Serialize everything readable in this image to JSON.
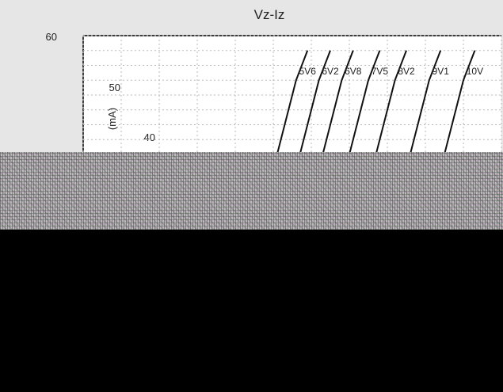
{
  "chart_data": {
    "type": "line",
    "title": "Vz-Iz",
    "xlabel": "",
    "ylabel": "(mA)",
    "ylim": [
      20,
      60
    ],
    "yticks": [
      "60",
      "50",
      "40"
    ],
    "grid": true,
    "series": [
      {
        "name": "5V6",
        "x": [
          5.1,
          5.6,
          5.9
        ],
        "y": [
          20,
          45,
          55
        ]
      },
      {
        "name": "6V2",
        "x": [
          5.7,
          6.2,
          6.5
        ],
        "y": [
          20,
          45,
          55
        ]
      },
      {
        "name": "6V8",
        "x": [
          6.3,
          6.8,
          7.1
        ],
        "y": [
          20,
          45,
          55
        ]
      },
      {
        "name": "7V5",
        "x": [
          7.0,
          7.5,
          7.8
        ],
        "y": [
          20,
          45,
          55
        ]
      },
      {
        "name": "8V2",
        "x": [
          7.7,
          8.2,
          8.5
        ],
        "y": [
          20,
          45,
          55
        ]
      },
      {
        "name": "9V1",
        "x": [
          8.6,
          9.1,
          9.4
        ],
        "y": [
          20,
          45,
          55
        ]
      },
      {
        "name": "10V",
        "x": [
          9.5,
          10.0,
          10.3
        ],
        "y": [
          20,
          45,
          55
        ]
      }
    ],
    "xlim": [
      0,
      11
    ],
    "series_colors": [
      "#111111",
      "#111111",
      "#111111",
      "#111111",
      "#111111",
      "#111111",
      "#111111"
    ]
  }
}
